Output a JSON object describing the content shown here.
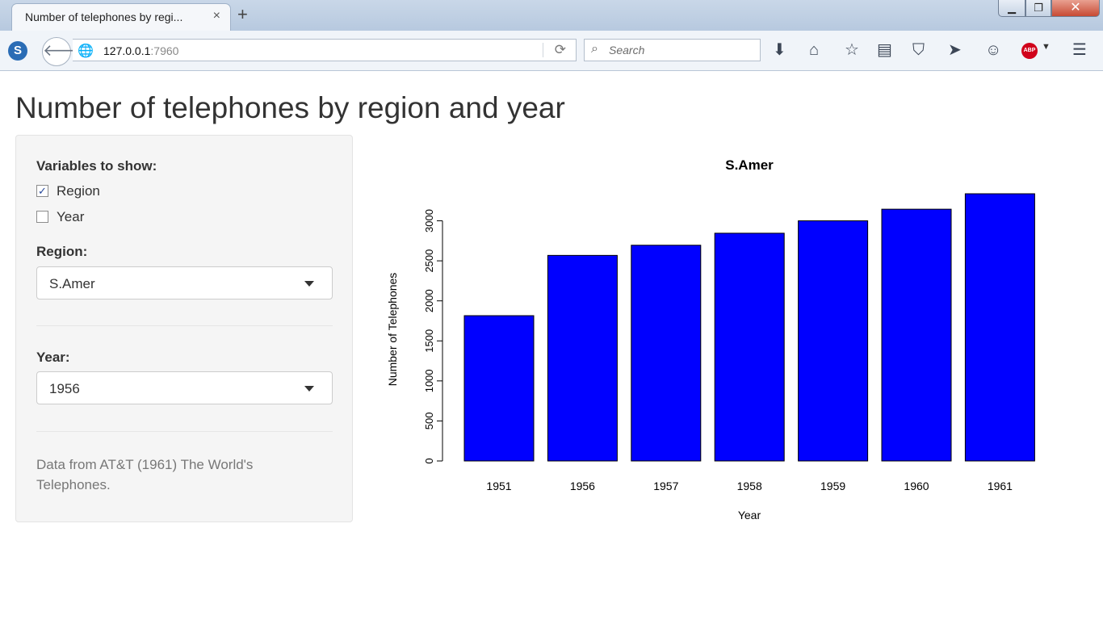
{
  "browser": {
    "tab_title": "Number of telephones by regi...",
    "tab_close": "×",
    "new_tab": "+",
    "url_host": "127.0.0.1",
    "url_port": ":7960",
    "search_placeholder": "Search",
    "site_badge": "S",
    "abp_label": "ABP",
    "icons": [
      "download-icon",
      "home-icon",
      "bookmark-star-icon",
      "reading-list-icon",
      "pocket-icon",
      "send-icon",
      "smiley-icon",
      "adblock-icon",
      "menu-icon"
    ]
  },
  "page": {
    "title": "Number of telephones by region and year"
  },
  "sidebar": {
    "variables_label": "Variables to show:",
    "checkboxes": [
      {
        "label": "Region",
        "checked": true
      },
      {
        "label": "Year",
        "checked": false
      }
    ],
    "region_label": "Region:",
    "region_value": "S.Amer",
    "year_label": "Year:",
    "year_value": "1956",
    "note": "Data from AT&T (1961) The World's Telephones."
  },
  "chart_data": {
    "type": "bar",
    "title": "S.Amer",
    "xlabel": "Year",
    "ylabel": "Number of Telephones",
    "categories": [
      "1951",
      "1956",
      "1957",
      "1958",
      "1959",
      "1960",
      "1961"
    ],
    "values": [
      1815,
      2568,
      2695,
      2845,
      3000,
      3145,
      3338
    ],
    "ylim": [
      0,
      3338
    ],
    "yticks": [
      0,
      500,
      1000,
      1500,
      2000,
      2500,
      3000
    ],
    "bar_color": "#0000ff",
    "grid": false
  }
}
